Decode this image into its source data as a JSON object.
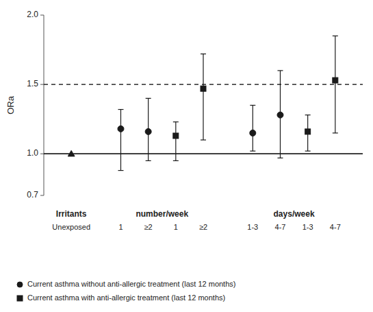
{
  "chart_data": {
    "type": "errorbar",
    "ylabel": "ORa",
    "ylim": [
      0.7,
      2.0
    ],
    "yticks": [
      0.7,
      {
        "value": 1.0,
        "label": "1.0"
      },
      1.5,
      {
        "value": 2.0,
        "label": "2.0"
      }
    ],
    "color": "#1a1a1a",
    "groups": [
      {
        "label": "Irritants",
        "categories": [
          "Unexposed"
        ]
      },
      {
        "label": "number/week",
        "categories": [
          "1",
          "≥2",
          "1",
          "≥2"
        ]
      },
      {
        "label": "days/week",
        "categories": [
          "1-3",
          "4-7",
          "1-3",
          "4-7"
        ]
      }
    ],
    "series": [
      {
        "marker": "triangle",
        "values": [
          1.0,
          null,
          null,
          null,
          null,
          null,
          null,
          null,
          null
        ]
      },
      {
        "name": "Current asthma without anti-allergic treatment (last 12 months)",
        "marker": "circle",
        "values": [
          null,
          1.18,
          1.16,
          null,
          null,
          1.15,
          1.28,
          null,
          null
        ],
        "lower": [
          null,
          0.88,
          0.95,
          null,
          null,
          1.02,
          0.97,
          null,
          null
        ],
        "upper": [
          null,
          1.32,
          1.4,
          null,
          null,
          1.35,
          1.6,
          null,
          null
        ]
      },
      {
        "name": "Current asthma with anti-allergic treatment (last 12 months)",
        "marker": "square",
        "values": [
          null,
          null,
          null,
          1.13,
          1.47,
          null,
          null,
          1.16,
          1.53
        ],
        "lower": [
          null,
          null,
          null,
          0.95,
          1.1,
          null,
          null,
          1.02,
          1.15
        ],
        "upper": [
          null,
          null,
          null,
          1.23,
          1.72,
          null,
          null,
          1.28,
          1.85
        ]
      }
    ],
    "reference_lines": [
      {
        "y": 1.0,
        "line_style": "solid"
      },
      {
        "y": 1.5,
        "line_style": "dashed"
      }
    ],
    "legend": "lower left"
  }
}
